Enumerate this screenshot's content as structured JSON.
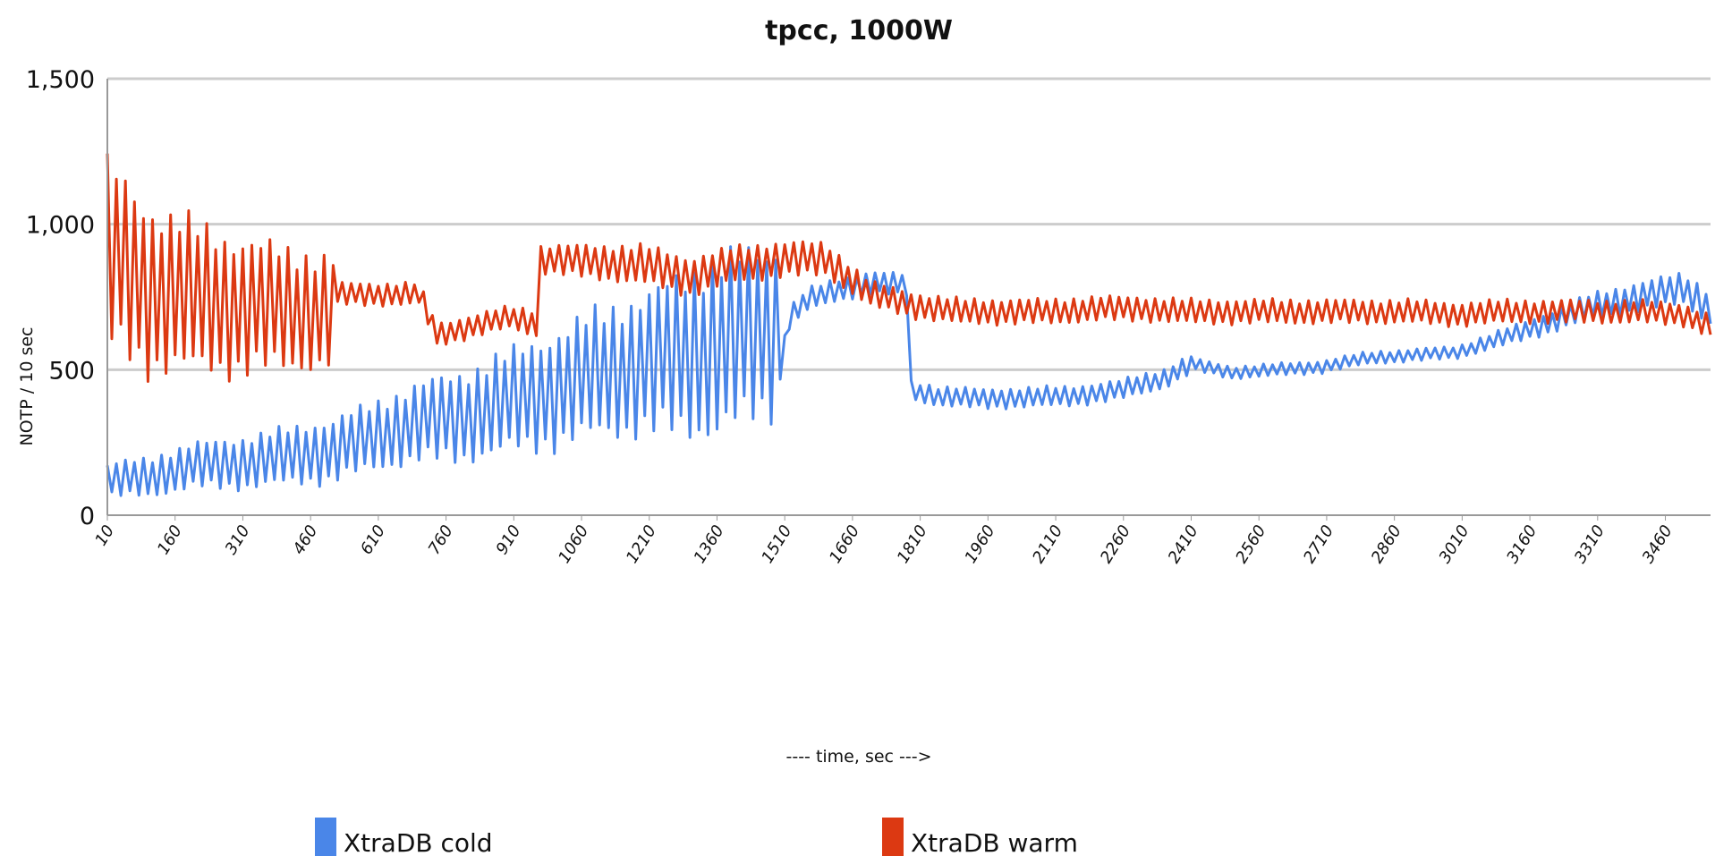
{
  "chart_data": {
    "type": "line",
    "title": "tpcc, 1000W",
    "xlabel": "---- time, sec --->",
    "ylabel": "NOTP / 10 sec",
    "ylim": [
      0,
      1500
    ],
    "y_ticks": [
      0,
      500,
      1000,
      1500
    ],
    "y_tick_labels": [
      "0",
      "500",
      "1,000",
      "1,500"
    ],
    "x_tick_labels": [
      "10",
      "160",
      "310",
      "460",
      "610",
      "760",
      "910",
      "1060",
      "1210",
      "1360",
      "1510",
      "1660",
      "1810",
      "1960",
      "2110",
      "2260",
      "2410",
      "2560",
      "2710",
      "2860",
      "3010",
      "3160",
      "3310",
      "3460"
    ],
    "x_step_sec": 10,
    "grid": true,
    "legend_position": "bottom",
    "colors": {
      "cold": "#4a86e8",
      "warm": "#dc3912",
      "grid": "#cccccc",
      "axis": "#999999"
    },
    "series": [
      {
        "name": "XtraDB cold",
        "color": "#4a86e8",
        "anchors": [
          [
            10,
            120
          ],
          [
            100,
            130
          ],
          [
            200,
            170
          ],
          [
            310,
            180
          ],
          [
            400,
            200
          ],
          [
            500,
            220
          ],
          [
            600,
            270
          ],
          [
            700,
            320
          ],
          [
            800,
            340
          ],
          [
            900,
            390
          ],
          [
            1000,
            430
          ],
          [
            1100,
            490
          ],
          [
            1200,
            520
          ],
          [
            1300,
            560
          ],
          [
            1400,
            600
          ],
          [
            1490,
            640
          ],
          [
            1500,
            500
          ],
          [
            1520,
            680
          ],
          [
            1560,
            740
          ],
          [
            1620,
            770
          ],
          [
            1700,
            800
          ],
          [
            1780,
            790
          ],
          [
            1785,
            430
          ],
          [
            1850,
            410
          ],
          [
            1950,
            400
          ],
          [
            2050,
            405
          ],
          [
            2150,
            410
          ],
          [
            2250,
            430
          ],
          [
            2350,
            470
          ],
          [
            2410,
            520
          ],
          [
            2500,
            490
          ],
          [
            2600,
            500
          ],
          [
            2700,
            510
          ],
          [
            2800,
            540
          ],
          [
            2900,
            550
          ],
          [
            3000,
            560
          ],
          [
            3100,
            610
          ],
          [
            3200,
            660
          ],
          [
            3300,
            720
          ],
          [
            3400,
            750
          ],
          [
            3500,
            780
          ],
          [
            3560,
            710
          ]
        ],
        "osc_amp": [
          [
            10,
            60
          ],
          [
            300,
            90
          ],
          [
            600,
            120
          ],
          [
            900,
            180
          ],
          [
            1200,
            250
          ],
          [
            1350,
            320
          ],
          [
            1490,
            300
          ],
          [
            1500,
            40
          ],
          [
            1780,
            40
          ],
          [
            1785,
            35
          ],
          [
            2400,
            35
          ],
          [
            2420,
            22
          ],
          [
            3000,
            22
          ],
          [
            3300,
            45
          ],
          [
            3560,
            60
          ]
        ]
      },
      {
        "name": "XtraDB warm",
        "color": "#dc3912",
        "anchors": [
          [
            10,
            900
          ],
          [
            100,
            780
          ],
          [
            300,
            720
          ],
          [
            500,
            700
          ],
          [
            510,
            760
          ],
          [
            700,
            760
          ],
          [
            740,
            620
          ],
          [
            900,
            680
          ],
          [
            960,
            660
          ],
          [
            970,
            880
          ],
          [
            1100,
            870
          ],
          [
            1200,
            860
          ],
          [
            1300,
            820
          ],
          [
            1400,
            860
          ],
          [
            1500,
            880
          ],
          [
            1600,
            880
          ],
          [
            1700,
            760
          ],
          [
            1800,
            720
          ],
          [
            1900,
            700
          ],
          [
            2000,
            700
          ],
          [
            2100,
            700
          ],
          [
            2200,
            710
          ],
          [
            2300,
            710
          ],
          [
            2400,
            700
          ],
          [
            2500,
            700
          ],
          [
            2600,
            700
          ],
          [
            2700,
            700
          ],
          [
            2800,
            700
          ],
          [
            2900,
            700
          ],
          [
            3000,
            690
          ],
          [
            3100,
            700
          ],
          [
            3200,
            700
          ],
          [
            3300,
            700
          ],
          [
            3400,
            700
          ],
          [
            3500,
            690
          ],
          [
            3560,
            650
          ]
        ],
        "osc_amp": [
          [
            10,
            330
          ],
          [
            150,
            280
          ],
          [
            350,
            230
          ],
          [
            500,
            200
          ],
          [
            520,
            40
          ],
          [
            740,
            40
          ],
          [
            900,
            40
          ],
          [
            970,
            50
          ],
          [
            1200,
            70
          ],
          [
            1600,
            60
          ],
          [
            1700,
            45
          ],
          [
            3560,
            40
          ]
        ]
      }
    ]
  }
}
